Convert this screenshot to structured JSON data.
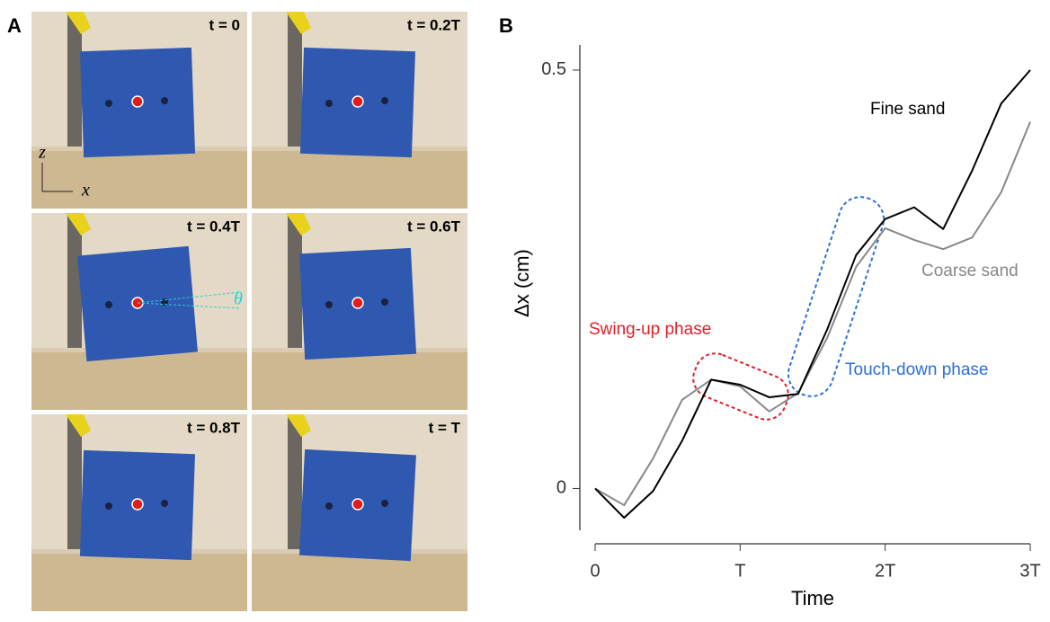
{
  "panel_labels": [
    "A",
    "B"
  ],
  "photos": [
    {
      "label": "t = 0"
    },
    {
      "label": "t = 0.2T"
    },
    {
      "label": "t = 0.4T"
    },
    {
      "label": "t = 0.6T"
    },
    {
      "label": "t = 0.8T"
    },
    {
      "label": "t = T"
    }
  ],
  "frame_axes": {
    "vertical": "z",
    "horizontal": "x"
  },
  "angle_label": "θ",
  "chart_data": {
    "type": "line",
    "x_label": "Time",
    "y_label": "Δx (cm)",
    "x": [
      0,
      0.2,
      0.4,
      0.6,
      0.8,
      1.0,
      1.2,
      1.4,
      1.6,
      1.8,
      2.0,
      2.2,
      2.4,
      2.6,
      2.8,
      3.0
    ],
    "series": [
      {
        "name": "Fine sand",
        "color": "#000000",
        "values": [
          0,
          -0.035,
          -0.003,
          0.057,
          0.13,
          0.124,
          0.109,
          0.113,
          0.19,
          0.279,
          0.322,
          0.336,
          0.31,
          0.38,
          0.46,
          0.5
        ]
      },
      {
        "name": "Coarse sand",
        "color": "#888888",
        "values": [
          0,
          -0.02,
          0.036,
          0.106,
          0.13,
          0.122,
          0.092,
          0.114,
          0.18,
          0.265,
          0.311,
          0.297,
          0.286,
          0.3,
          0.354,
          0.438
        ]
      }
    ],
    "xlim": [
      0,
      3
    ],
    "xticks": [
      0,
      {
        "value": 1,
        "label": "T"
      },
      {
        "value": 2,
        "label": "2T"
      },
      {
        "value": 3,
        "label": "3T"
      }
    ],
    "ylim": [
      -0.05,
      0.53
    ],
    "yticks": [
      0,
      0.5
    ],
    "annotations": [
      {
        "text": "Swing-up phase",
        "color": "#e0202a"
      },
      {
        "text": "Touch-down phase",
        "color": "#2b6fd6"
      }
    ]
  }
}
